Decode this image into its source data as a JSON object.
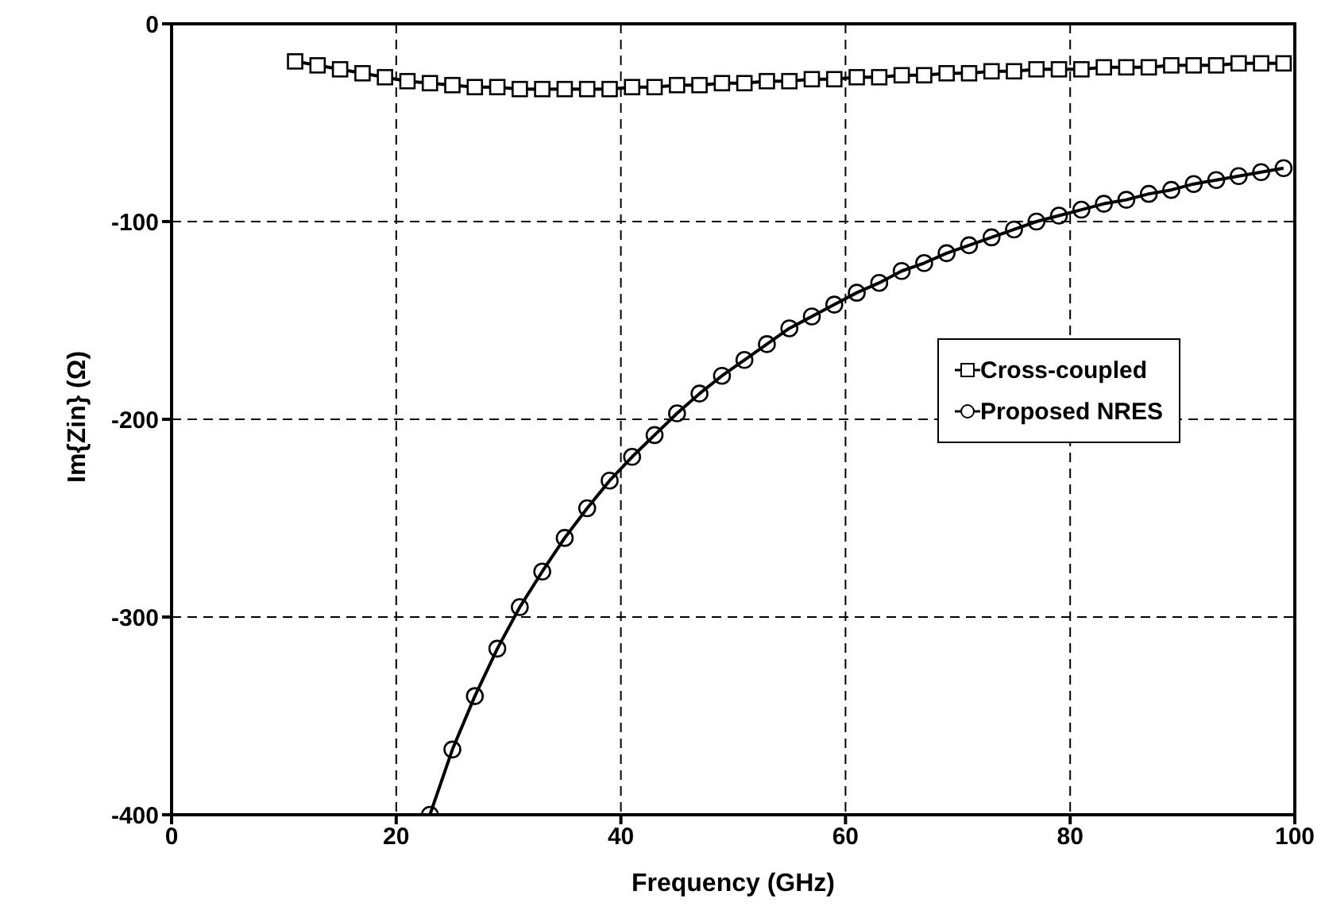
{
  "chart_data": {
    "type": "line",
    "xlabel": "Frequency (GHz)",
    "ylabel": "Im{Zin} (Ω)",
    "xlim": [
      0,
      100
    ],
    "xticks": [
      0,
      20,
      40,
      60,
      80,
      100
    ],
    "ylim": [
      -400,
      0
    ],
    "yticks": [
      -400,
      -300,
      -200,
      -100,
      0
    ],
    "grid": true,
    "legend": "right",
    "line_style": "solid",
    "series": [
      {
        "name": "Cross-coupled",
        "color": "#000000",
        "marker": "square",
        "x": [
          11,
          13,
          15,
          17,
          19,
          21,
          23,
          25,
          27,
          29,
          31,
          33,
          35,
          37,
          39,
          41,
          43,
          45,
          47,
          49,
          51,
          53,
          55,
          57,
          59,
          61,
          63,
          65,
          67,
          69,
          71,
          73,
          75,
          77,
          79,
          81,
          83,
          85,
          87,
          89,
          91,
          93,
          95,
          97,
          99
        ],
        "values": [
          -19,
          -21,
          -23,
          -25,
          -27,
          -29,
          -30,
          -31,
          -32,
          -32,
          -33,
          -33,
          -33,
          -33,
          -33,
          -32,
          -32,
          -31,
          -31,
          -30,
          -30,
          -29,
          -29,
          -28,
          -28,
          -27,
          -27,
          -26,
          -26,
          -25,
          -25,
          -24,
          -24,
          -23,
          -23,
          -23,
          -22,
          -22,
          -22,
          -21,
          -21,
          -21,
          -20,
          -20,
          -20
        ]
      },
      {
        "name": "Proposed NRES",
        "color": "#000000",
        "marker": "circle",
        "x": [
          23,
          25,
          27,
          29,
          31,
          33,
          35,
          37,
          39,
          41,
          43,
          45,
          47,
          49,
          51,
          53,
          55,
          57,
          59,
          61,
          63,
          65,
          67,
          69,
          71,
          73,
          75,
          77,
          79,
          81,
          83,
          85,
          87,
          89,
          91,
          93,
          95,
          97,
          99
        ],
        "values": [
          -400,
          -367,
          -340,
          -316,
          -295,
          -277,
          -260,
          -245,
          -231,
          -219,
          -208,
          -197,
          -187,
          -178,
          -170,
          -162,
          -154,
          -148,
          -142,
          -136,
          -131,
          -125,
          -121,
          -116,
          -112,
          -108,
          -104,
          -100,
          -97,
          -94,
          -91,
          -89,
          -86,
          -84,
          -81,
          -79,
          -77,
          -75,
          -73
        ]
      }
    ]
  }
}
